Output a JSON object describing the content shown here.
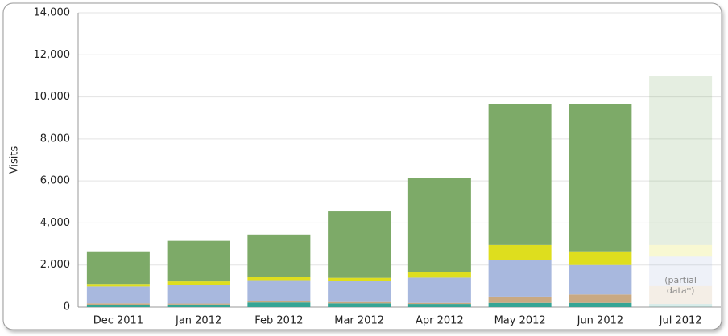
{
  "chart_data": {
    "type": "stacked_bar",
    "y_label": "Visits",
    "categories": [
      "Dec 2011",
      "Jan 2012",
      "Feb 2012",
      "Mar 2012",
      "Apr 2012",
      "May 2012",
      "Jun 2012",
      "Jul 2012"
    ],
    "series": [
      {
        "color": "#35a595",
        "values": [
          80,
          120,
          220,
          180,
          150,
          200,
          200,
          150
        ]
      },
      {
        "color": "#c9a982",
        "values": [
          100,
          50,
          60,
          60,
          50,
          300,
          400,
          850
        ]
      },
      {
        "color": "#a8b8de",
        "values": [
          800,
          900,
          1000,
          1000,
          1200,
          1750,
          1400,
          1400
        ]
      },
      {
        "color": "#dede1e",
        "values": [
          120,
          150,
          150,
          150,
          250,
          700,
          650,
          550
        ]
      },
      {
        "color": "#7daa68",
        "values": [
          1550,
          1930,
          2020,
          3160,
          4500,
          6700,
          7000,
          8050
        ]
      }
    ],
    "annotation": {
      "category": "Jul 2012",
      "lines": [
        "(partial",
        "data*)"
      ]
    },
    "ylim": [
      0,
      14000
    ],
    "yticks": [
      0,
      {
        "value": 2000,
        "label": "2,000"
      },
      {
        "value": 4000,
        "label": "4,000"
      },
      {
        "value": 6000,
        "label": "6,000"
      },
      {
        "value": 8000,
        "label": "8,000"
      },
      {
        "value": 10000,
        "label": "10,000"
      },
      {
        "value": 12000,
        "label": "12,000"
      },
      {
        "value": 14000,
        "label": "14,000"
      }
    ],
    "grid": true
  }
}
